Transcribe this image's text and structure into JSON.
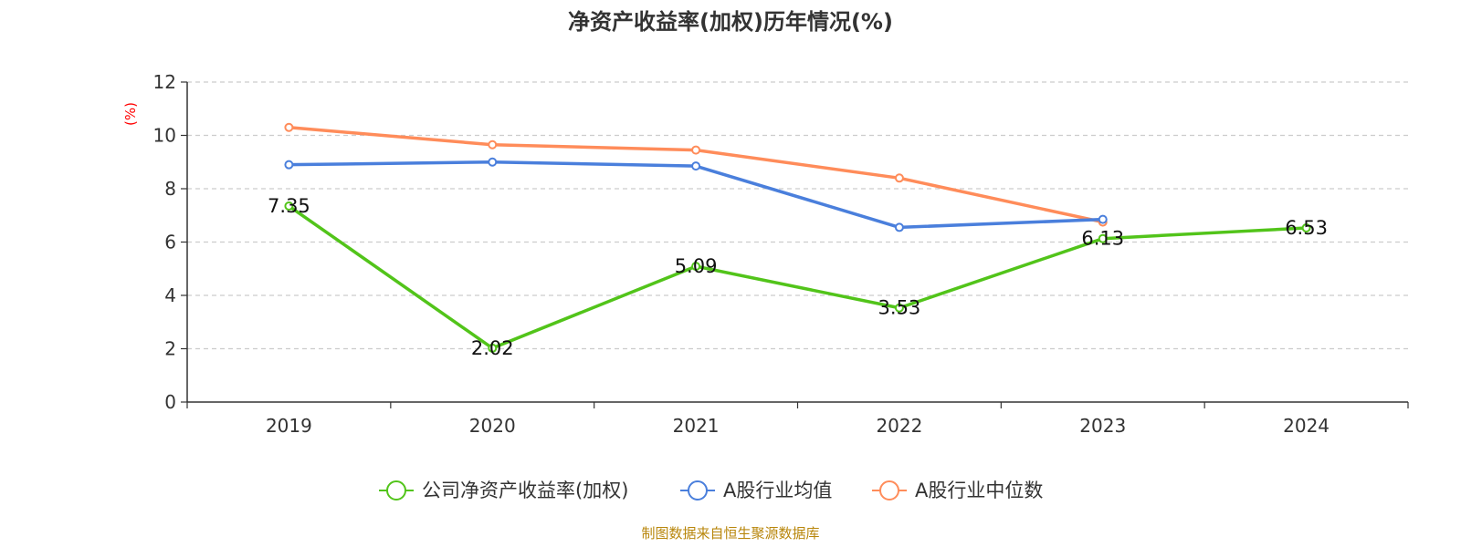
{
  "chart_data": {
    "type": "line",
    "title": "净资产收益率(加权)历年情况(%)",
    "ylabel": "(%)",
    "xlabel": "",
    "categories": [
      "2019",
      "2020",
      "2021",
      "2022",
      "2023",
      "2024"
    ],
    "ylim": [
      0,
      12
    ],
    "yticks": [
      0,
      2,
      4,
      6,
      8,
      10,
      12
    ],
    "grid": "horizontal-dashed",
    "legend_position": "bottom",
    "series": [
      {
        "name": "公司净资产收益率(加权)",
        "color": "#52c41a",
        "values": [
          7.35,
          2.02,
          5.09,
          3.53,
          6.13,
          6.53
        ],
        "labels": [
          "7.35",
          "2.02",
          "5.09",
          "3.53",
          "6.13",
          "6.53"
        ]
      },
      {
        "name": "A股行业均值",
        "color": "#4a7fdc",
        "values": [
          8.9,
          9.0,
          8.85,
          6.55,
          6.85,
          null
        ]
      },
      {
        "name": "A股行业中位数",
        "color": "#ff8c5a",
        "values": [
          10.3,
          9.65,
          9.45,
          8.4,
          6.75,
          null
        ]
      }
    ]
  },
  "footer": {
    "source": "制图数据来自恒生聚源数据库"
  }
}
